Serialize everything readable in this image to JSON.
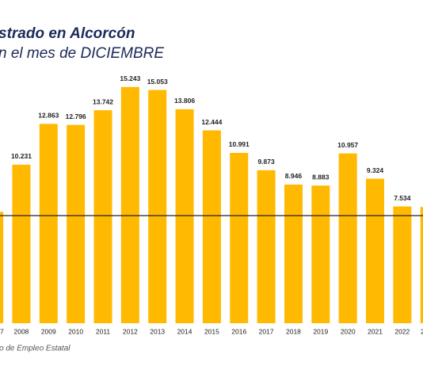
{
  "chart_data": {
    "type": "bar",
    "title": "strado en Alcorcón",
    "subtitle": "n el mes de DICIEMBRE",
    "source": "o de Empleo Estatal",
    "categories": [
      "7",
      "2008",
      "2009",
      "2010",
      "2011",
      "2012",
      "2013",
      "2014",
      "2015",
      "2016",
      "2017",
      "2018",
      "2019",
      "2020",
      "2021",
      "2022",
      "2"
    ],
    "values": [
      7189,
      10231,
      12863,
      12796,
      13742,
      15243,
      15053,
      13806,
      12444,
      10991,
      9873,
      8946,
      8883,
      10957,
      9324,
      7534,
      7500
    ],
    "value_labels": [
      null,
      "10.231",
      "12.863",
      "12.796",
      "13.742",
      "15.243",
      "15.053",
      "13.806",
      "12.444",
      "10.991",
      "9.873",
      "8.946",
      "8.883",
      "10.957",
      "9.324",
      "7.534",
      null
    ],
    "color": "#ffb900",
    "hline": 6940,
    "ylim": [
      0,
      16000
    ]
  }
}
